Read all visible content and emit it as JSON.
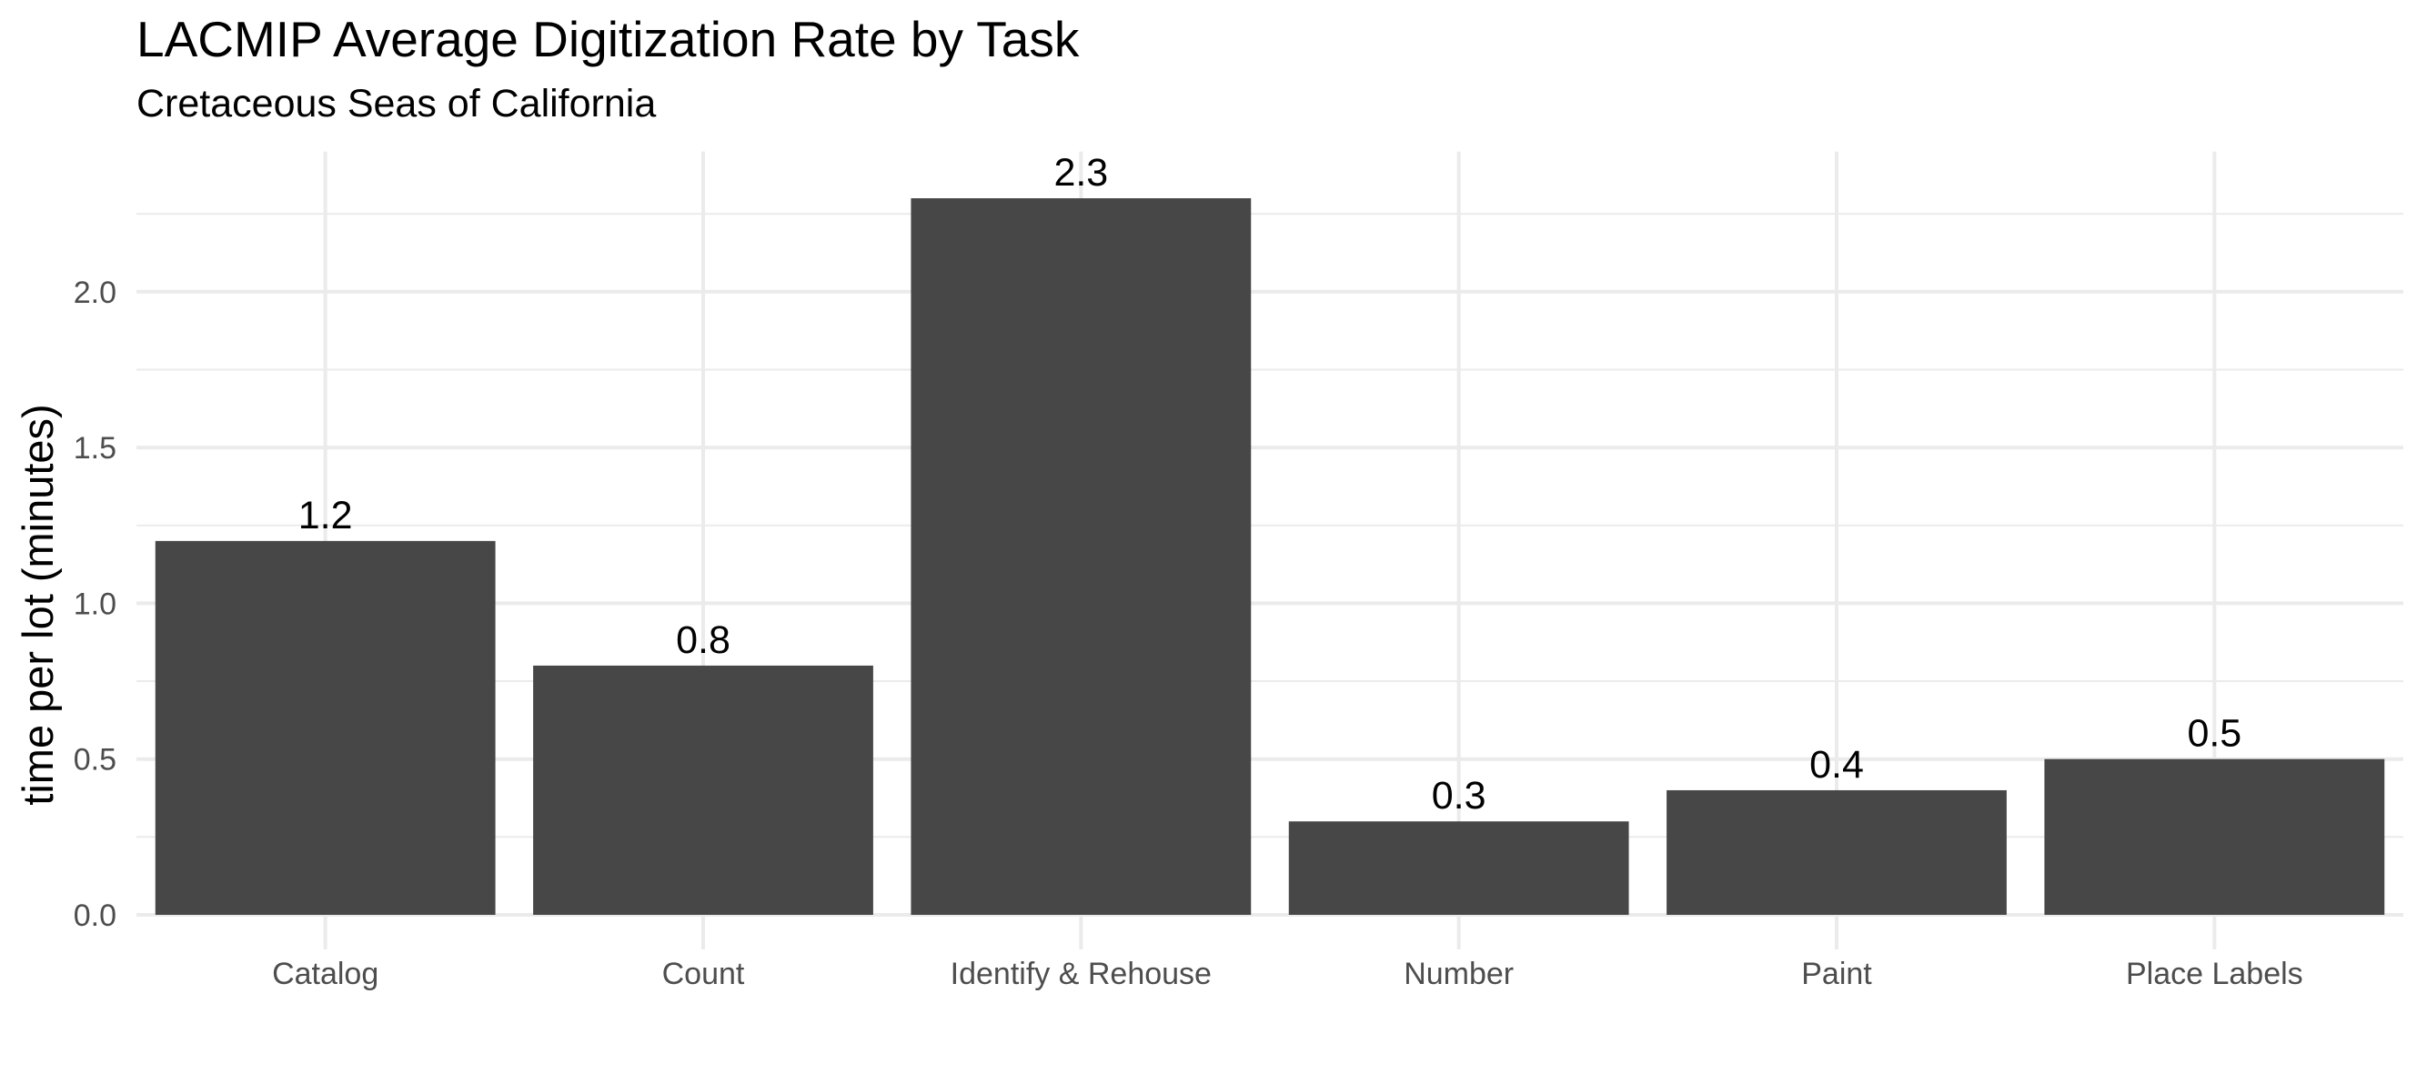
{
  "chart_data": {
    "type": "bar",
    "title": "LACMIP Average Digitization Rate by Task",
    "subtitle": "Cretaceous Seas of California",
    "xlabel": "",
    "ylabel": "time per lot (minutes)",
    "categories": [
      "Catalog",
      "Count",
      "Identify & Rehouse",
      "Number",
      "Paint",
      "Place Labels"
    ],
    "values": [
      1.2,
      0.8,
      2.3,
      0.3,
      0.4,
      0.5
    ],
    "data_labels": [
      "1.2",
      "0.8",
      "2.3",
      "0.3",
      "0.4",
      "0.5"
    ],
    "ylim": [
      0,
      2.45
    ],
    "yticks": [
      0.0,
      0.5,
      1.0,
      1.5,
      2.0
    ],
    "ytick_labels": [
      "0.0",
      "0.5",
      "1.0",
      "1.5",
      "2.0"
    ],
    "grid": true,
    "legend": "none",
    "bar_color": "#474747",
    "grid_color": "#ebebeb"
  }
}
